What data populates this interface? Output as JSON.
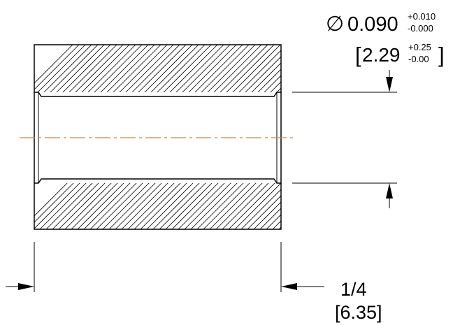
{
  "diameter_dimension": {
    "symbol": "∅",
    "value": "0.090",
    "tol_plus": "+0.010",
    "tol_minus": "-0.000",
    "metric_open": "[",
    "metric_value": "2.29",
    "metric_tol_plus": "+0.25",
    "metric_tol_minus": "-0.00",
    "metric_close": "]"
  },
  "length_dimension": {
    "value": "1/4",
    "metric": "[6.35]"
  },
  "colors": {
    "line": "#000000",
    "centerline": "#c8864a",
    "background": "#ffffff"
  }
}
